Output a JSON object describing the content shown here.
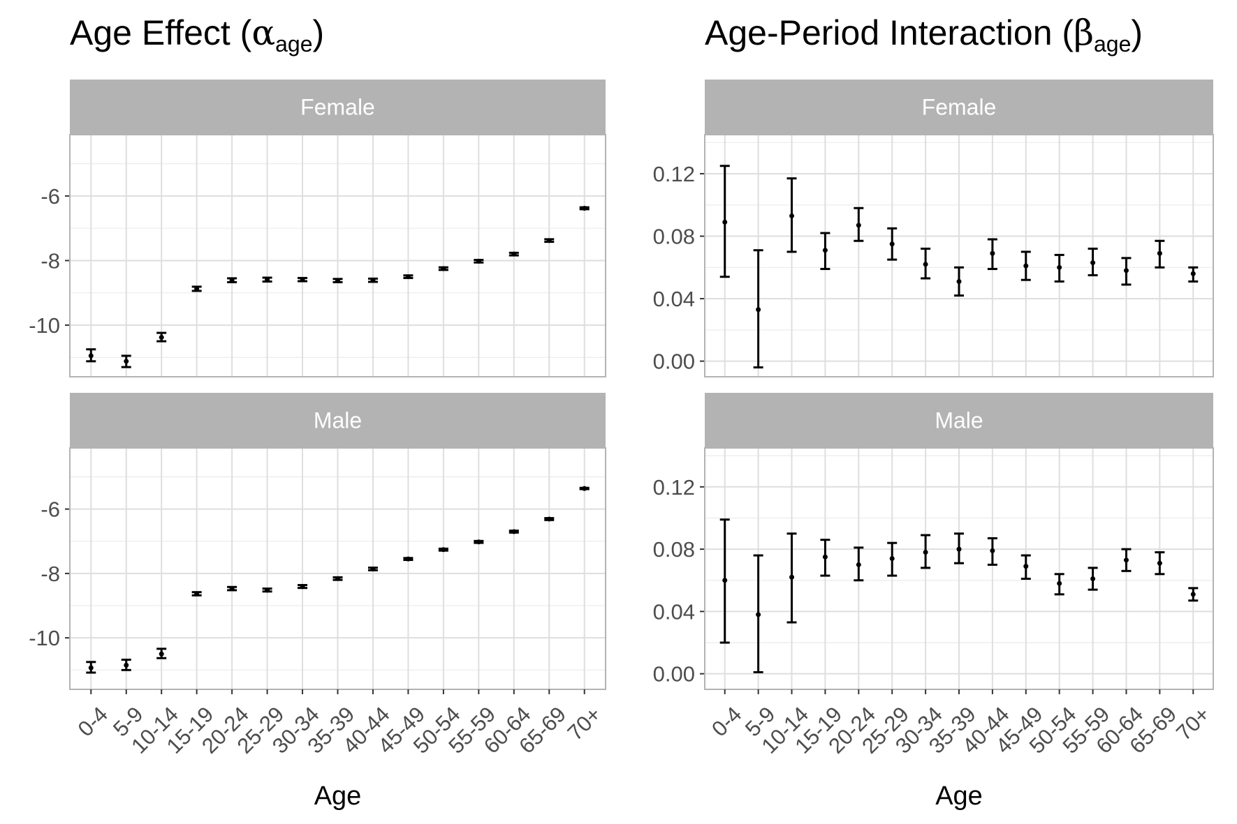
{
  "panels": [
    {
      "title": "Age Effect (",
      "title_symbol": "α",
      "title_subscript": "age",
      "title_close": ")"
    },
    {
      "title": "Age-Period Interaction (",
      "title_symbol": "β",
      "title_subscript": "age",
      "title_close": ")"
    }
  ],
  "chart_data": [
    {
      "type": "scatter",
      "title": "Age Effect (α_age)",
      "xlabel": "Age",
      "ylabel": "",
      "categories": [
        "0-4",
        "5-9",
        "10-14",
        "15-19",
        "20-24",
        "25-29",
        "30-34",
        "35-39",
        "40-44",
        "45-49",
        "50-54",
        "55-59",
        "60-64",
        "65-69",
        "70+"
      ],
      "ylim": [
        -11.6,
        -4.1
      ],
      "yticks": [
        -10,
        -8,
        -6
      ],
      "grid": true,
      "facets": [
        {
          "name": "Female",
          "values": [
            -10.95,
            -11.12,
            -10.38,
            -8.88,
            -8.61,
            -8.59,
            -8.59,
            -8.62,
            -8.61,
            -8.5,
            -8.25,
            -8.02,
            -7.8,
            -7.38,
            -6.38
          ],
          "lower": [
            -11.12,
            -11.3,
            -10.5,
            -8.94,
            -8.67,
            -8.65,
            -8.64,
            -8.67,
            -8.66,
            -8.54,
            -8.29,
            -8.06,
            -7.84,
            -7.42,
            -6.41
          ],
          "upper": [
            -10.75,
            -10.95,
            -10.24,
            -8.81,
            -8.55,
            -8.53,
            -8.54,
            -8.57,
            -8.56,
            -8.46,
            -8.21,
            -7.98,
            -7.76,
            -7.34,
            -6.35
          ]
        },
        {
          "name": "Male",
          "values": [
            -10.93,
            -10.85,
            -10.5,
            -8.63,
            -8.47,
            -8.52,
            -8.41,
            -8.16,
            -7.86,
            -7.55,
            -7.26,
            -7.02,
            -6.7,
            -6.31,
            -5.36
          ],
          "lower": [
            -11.08,
            -11.0,
            -10.63,
            -8.68,
            -8.52,
            -8.56,
            -8.45,
            -8.2,
            -7.9,
            -7.58,
            -7.29,
            -7.05,
            -6.73,
            -6.34,
            -5.38
          ],
          "upper": [
            -10.75,
            -10.68,
            -10.34,
            -8.58,
            -8.42,
            -8.47,
            -8.36,
            -8.12,
            -7.82,
            -7.52,
            -7.23,
            -6.99,
            -6.67,
            -6.28,
            -5.34
          ]
        }
      ]
    },
    {
      "type": "scatter",
      "title": "Age-Period Interaction (β_age)",
      "xlabel": "Age",
      "ylabel": "",
      "categories": [
        "0-4",
        "5-9",
        "10-14",
        "15-19",
        "20-24",
        "25-29",
        "30-34",
        "35-39",
        "40-44",
        "45-49",
        "50-54",
        "55-59",
        "60-64",
        "65-69",
        "70+"
      ],
      "ylim": [
        -0.01,
        0.145
      ],
      "yticks": [
        0.0,
        0.04,
        0.08,
        0.12
      ],
      "ytick_labels": [
        "0.00",
        "0.04",
        "0.08",
        "0.12"
      ],
      "grid": true,
      "facets": [
        {
          "name": "Female",
          "values": [
            0.089,
            0.033,
            0.093,
            0.071,
            0.087,
            0.075,
            0.062,
            0.051,
            0.069,
            0.061,
            0.06,
            0.063,
            0.058,
            0.069,
            0.056
          ],
          "lower": [
            0.054,
            -0.004,
            0.07,
            0.059,
            0.077,
            0.065,
            0.053,
            0.042,
            0.059,
            0.052,
            0.051,
            0.055,
            0.049,
            0.06,
            0.051
          ],
          "upper": [
            0.125,
            0.071,
            0.117,
            0.082,
            0.098,
            0.085,
            0.072,
            0.06,
            0.078,
            0.07,
            0.068,
            0.072,
            0.066,
            0.077,
            0.06
          ]
        },
        {
          "name": "Male",
          "values": [
            0.06,
            0.038,
            0.062,
            0.075,
            0.07,
            0.074,
            0.078,
            0.08,
            0.079,
            0.069,
            0.058,
            0.061,
            0.073,
            0.071,
            0.051
          ],
          "lower": [
            0.02,
            0.001,
            0.033,
            0.063,
            0.06,
            0.063,
            0.068,
            0.071,
            0.07,
            0.061,
            0.051,
            0.054,
            0.066,
            0.064,
            0.047
          ],
          "upper": [
            0.099,
            0.076,
            0.09,
            0.086,
            0.081,
            0.084,
            0.089,
            0.09,
            0.087,
            0.076,
            0.064,
            0.068,
            0.08,
            0.078,
            0.055
          ]
        }
      ]
    }
  ]
}
